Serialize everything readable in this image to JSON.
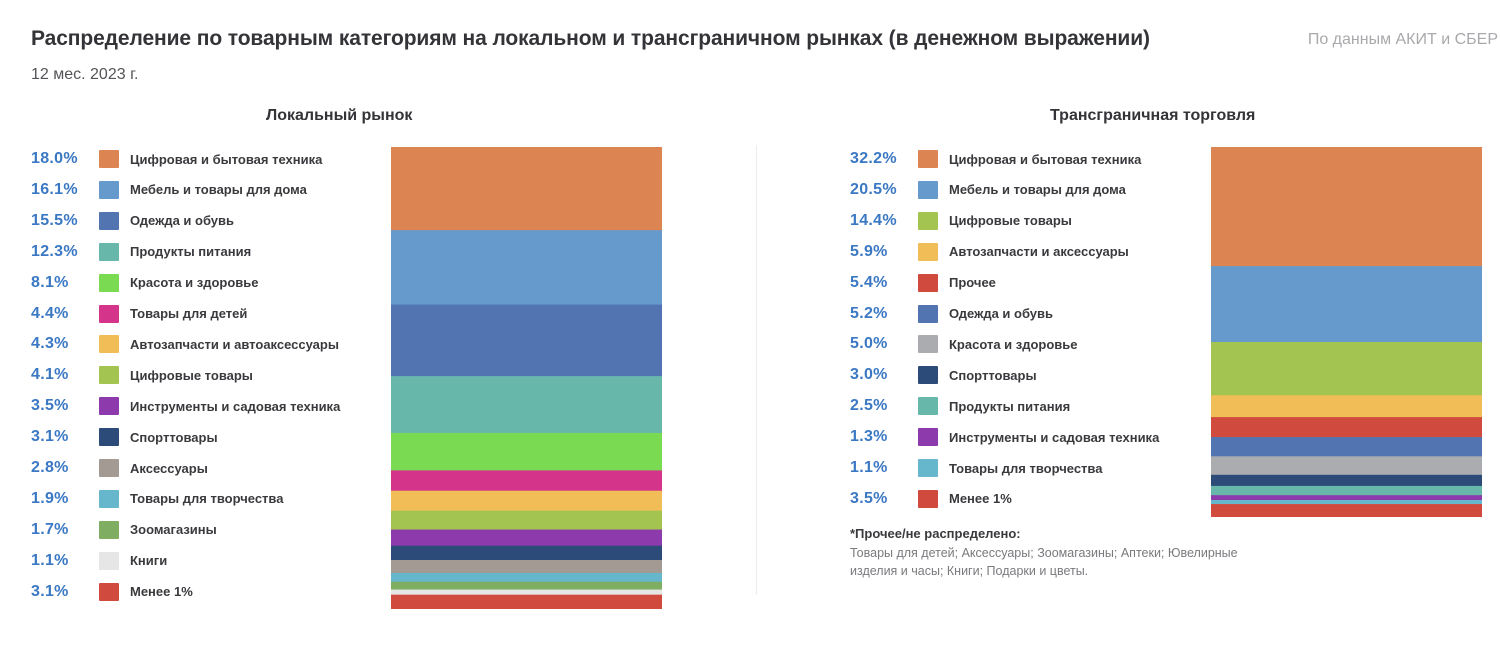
{
  "header": {
    "title": "Распределение по товарным категориям на локальном и трансграничном рынках (в денежном выражении)",
    "source": "По данным АКИТ и СБЕР",
    "period": "12 мес. 2023 г."
  },
  "chart_data": [
    {
      "type": "bar",
      "stacked": true,
      "normalized": true,
      "title": "Локальный рынок",
      "unit": "%",
      "legend_position": "left",
      "categories": [
        {
          "label": "Цифровая и бытовая техника",
          "value": 18.0,
          "display": "18.0%",
          "color": "#dc8553"
        },
        {
          "label": "Мебель и товары для дома",
          "value": 16.1,
          "display": "16.1%",
          "color": "#6699cc"
        },
        {
          "label": "Одежда и обувь",
          "value": 15.5,
          "display": "15.5%",
          "color": "#5274b1"
        },
        {
          "label": "Продукты питания",
          "value": 12.3,
          "display": "12.3%",
          "color": "#67b8ab"
        },
        {
          "label": "Красота и здоровье",
          "value": 8.1,
          "display": "8.1%",
          "color": "#7adb53"
        },
        {
          "label": "Товары для детей",
          "value": 4.4,
          "display": "4.4%",
          "color": "#d4358a"
        },
        {
          "label": "Автозапчасти и автоаксессуары",
          "value": 4.3,
          "display": "4.3%",
          "color": "#f1bd56"
        },
        {
          "label": "Цифровые товары",
          "value": 4.1,
          "display": "4.1%",
          "color": "#a3c451"
        },
        {
          "label": "Инструменты и садовая техника",
          "value": 3.5,
          "display": "3.5%",
          "color": "#8c3aac"
        },
        {
          "label": "Спорттовары",
          "value": 3.1,
          "display": "3.1%",
          "color": "#2c4b78"
        },
        {
          "label": "Аксессуары",
          "value": 2.8,
          "display": "2.8%",
          "color": "#a39b93"
        },
        {
          "label": "Товары для творчества",
          "value": 1.9,
          "display": "1.9%",
          "color": "#66b7cb"
        },
        {
          "label": "Зоомагазины",
          "value": 1.7,
          "display": "1.7%",
          "color": "#7fae62"
        },
        {
          "label": "Книги",
          "value": 1.1,
          "display": "1.1%",
          "color": "#e6e6e6"
        },
        {
          "label": "Менее 1%",
          "value": 3.1,
          "display": "3.1%",
          "color": "#d14a3e"
        }
      ]
    },
    {
      "type": "bar",
      "stacked": true,
      "normalized": true,
      "title": "Трансграничная торговля",
      "unit": "%",
      "legend_position": "left",
      "categories": [
        {
          "label": "Цифровая и бытовая техника",
          "value": 32.2,
          "display": "32.2%",
          "color": "#dc8553"
        },
        {
          "label": "Мебель и товары для дома",
          "value": 20.5,
          "display": "20.5%",
          "color": "#6699cc"
        },
        {
          "label": "Цифровые товары",
          "value": 14.4,
          "display": "14.4%",
          "color": "#a3c451"
        },
        {
          "label": "Автозапчасти и аксессуары",
          "value": 5.9,
          "display": "5.9%",
          "color": "#f1bd56"
        },
        {
          "label": "Прочее",
          "value": 5.4,
          "display": "5.4%",
          "color": "#d14a3e"
        },
        {
          "label": "Одежда и обувь",
          "value": 5.2,
          "display": "5.2%",
          "color": "#5274b1"
        },
        {
          "label": "Красота и здоровье",
          "value": 5.0,
          "display": "5.0%",
          "color": "#abacaf"
        },
        {
          "label": "Спорттовары",
          "value": 3.0,
          "display": "3.0%",
          "color": "#2c4b78"
        },
        {
          "label": "Продукты питания",
          "value": 2.5,
          "display": "2.5%",
          "color": "#67b8ab"
        },
        {
          "label": "Инструменты и садовая техника",
          "value": 1.3,
          "display": "1.3%",
          "color": "#8c3aac"
        },
        {
          "label": "Товары для творчества",
          "value": 1.1,
          "display": "1.1%",
          "color": "#66b7cb"
        },
        {
          "label": "Менее 1%",
          "value": 3.5,
          "display": "3.5%",
          "color": "#d14a3e"
        }
      ]
    }
  ],
  "footnote": {
    "title": "*Прочее/не распределено:",
    "text": "Товары для детей; Аксессуары; Зоомагазины; Аптеки; Ювелирные изделия и часы; Книги; Подарки и цветы."
  }
}
